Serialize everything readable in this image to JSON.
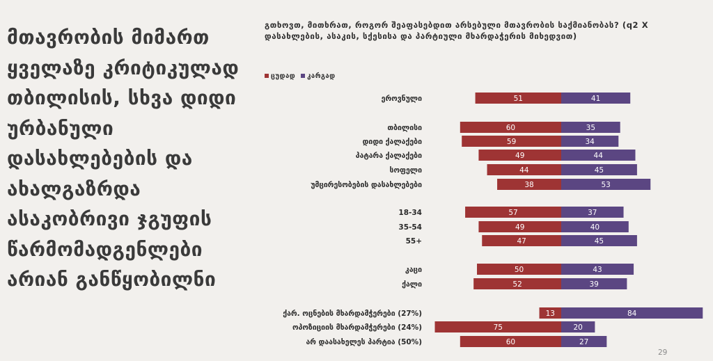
{
  "headline": "მთავრობის მიმართ ყველაზე კრიტიკულად თბილისის, სხვა დიდი ურბანული დასახლებების და ახალგაზრდა ასაკობრივი ჯგუფის წარმომადგენლები არიან განწყობილნი",
  "question": "გთხოვთ, მითხრათ, როგორ შეაფასებდით არსებული მთავრობის საქმიანობას? (q2 X დასახლების, ასაკის, სქესისა და პარტიული მხარდაჭერის მიხედვით)",
  "page_number": "29",
  "colors": {
    "bad": "#9e3434",
    "good": "#5b4682",
    "background": "#f2f0ed"
  },
  "chart_data": {
    "type": "bar",
    "orientation": "horizontal-diverging",
    "series": [
      {
        "name": "ცუდად",
        "color": "#9e3434",
        "values": [
          51,
          60,
          59,
          49,
          44,
          38,
          57,
          49,
          47,
          50,
          52,
          13,
          75,
          60
        ]
      },
      {
        "name": "კარგად",
        "color": "#5b4682",
        "values": [
          41,
          35,
          34,
          44,
          45,
          53,
          37,
          40,
          45,
          43,
          39,
          84,
          20,
          27
        ]
      }
    ],
    "categories": [
      "ეროვნული",
      "თბილისი",
      "დიდი ქალაქები",
      "პატარა ქალაქები",
      "სოფელი",
      "უმცირესობების დასახლებები",
      "18-34",
      "35-54",
      "55+",
      "კაცი",
      "ქალი",
      "ქარ. ოცნების მხარდამჭერები (27%)",
      "ოპოზიციის მხარდამჭერები (24%)",
      "არ დაასახელეს პარტია (50%)"
    ],
    "legend_position": "top-left",
    "grid": false
  }
}
